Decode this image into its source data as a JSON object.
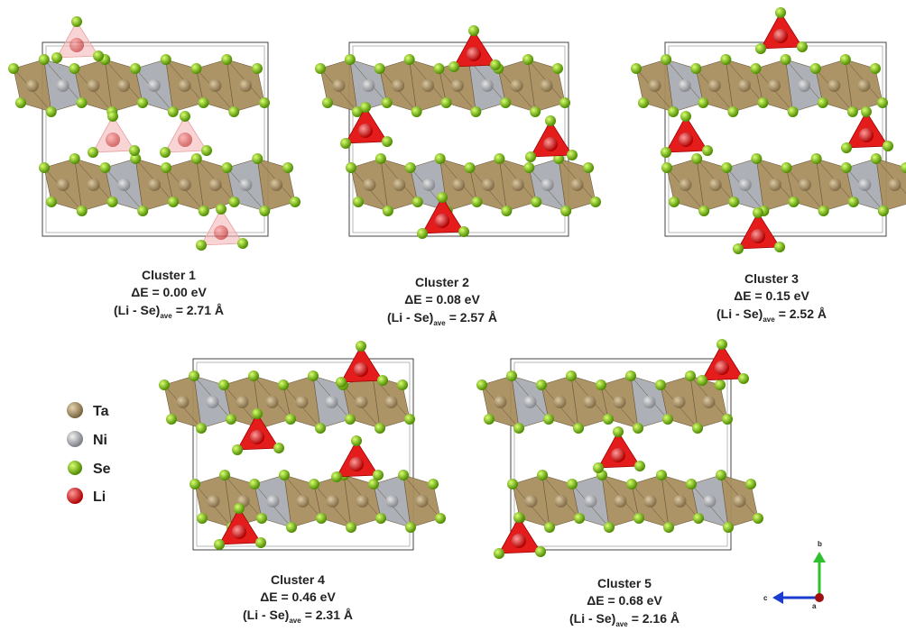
{
  "clusters": [
    {
      "title": "Cluster 1",
      "energy": "ΔE = 0.00 eV",
      "distance": [
        "(Li - Se)",
        "ave",
        "= 2.71 Å"
      ]
    },
    {
      "title": "Cluster 2",
      "energy": "ΔE = 0.08 eV",
      "distance": [
        "(Li - Se)",
        "ave",
        "= 2.57 Å"
      ]
    },
    {
      "title": "Cluster 3",
      "energy": "ΔE = 0.15 eV",
      "distance": [
        "(Li - Se)",
        "ave",
        "= 2.52 Å"
      ]
    },
    {
      "title": "Cluster 4",
      "energy": "ΔE = 0.46 eV",
      "distance": [
        "(Li - Se)",
        "ave",
        "= 2.31 Å"
      ]
    },
    {
      "title": "Cluster 5",
      "energy": "ΔE = 0.68 eV",
      "distance": [
        "(Li - Se)",
        "ave",
        "= 2.16 Å"
      ]
    }
  ],
  "legend": [
    "Ta",
    "Ni",
    "Se",
    "Li"
  ],
  "axes": {
    "b": "b",
    "c": "c",
    "a": "a"
  }
}
